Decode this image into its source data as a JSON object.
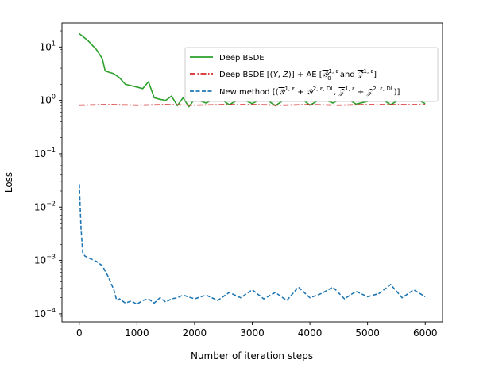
{
  "chart_data": {
    "type": "line",
    "xlabel": "Number of iteration steps",
    "ylabel": "Loss",
    "xlim": [
      -300,
      6300
    ],
    "ylim_log10": [
      -4.15,
      1.45
    ],
    "yscale": "log",
    "grid": false,
    "legend_position": "top-right",
    "x_ticks": [
      0,
      1000,
      2000,
      3000,
      4000,
      5000,
      6000
    ],
    "x_tick_labels": [
      "0",
      "1000",
      "2000",
      "3000",
      "4000",
      "5000",
      "6000"
    ],
    "y_ticks_log10": [
      1,
      0,
      -1,
      -2,
      -3,
      -4
    ],
    "y_tick_labels": [
      {
        "base": "10",
        "exp": "1"
      },
      {
        "base": "10",
        "exp": "0"
      },
      {
        "base": "10",
        "exp": "−1"
      },
      {
        "base": "10",
        "exp": "−2"
      },
      {
        "base": "10",
        "exp": "−3"
      },
      {
        "base": "10",
        "exp": "−4"
      }
    ],
    "series": [
      {
        "name": "Deep BSDE",
        "legend_label": "Deep BSDE",
        "color": "#2ca02c",
        "style": "solid",
        "x": [
          0,
          150,
          300,
          400,
          450,
          600,
          700,
          800,
          1000,
          1100,
          1200,
          1300,
          1400,
          1500,
          1600,
          1700,
          1800,
          1900,
          2000,
          2200,
          2400,
          2600,
          2800,
          3000,
          3200,
          3400,
          3600,
          3800,
          4000,
          4200,
          4400,
          4600,
          4800,
          5000,
          5200,
          5400,
          5600,
          5800,
          6000
        ],
        "y_log10": [
          1.25,
          1.12,
          0.95,
          0.78,
          0.55,
          0.5,
          0.42,
          0.3,
          0.25,
          0.22,
          0.35,
          0.05,
          0.02,
          0.0,
          0.08,
          -0.1,
          0.05,
          -0.12,
          0.02,
          -0.05,
          0.06,
          -0.08,
          0.03,
          -0.06,
          0.05,
          -0.1,
          0.04,
          0.07,
          -0.09,
          0.03,
          -0.05,
          0.06,
          -0.07,
          -0.02,
          0.05,
          -0.08,
          0.04,
          0.05,
          -0.06
        ]
      },
      {
        "name": "Deep BSDE + AE",
        "legend_label": "Deep BSDE [(Y, Z)] + AE [Y₀^{1,ε} and Z^{1,ε}]",
        "color": "#d62728",
        "style": "dashdot",
        "x": [
          0,
          500,
          1000,
          1500,
          2000,
          2500,
          3000,
          3500,
          4000,
          4500,
          5000,
          5500,
          6000
        ],
        "y_log10": [
          -0.09,
          -0.08,
          -0.09,
          -0.08,
          -0.09,
          -0.08,
          -0.08,
          -0.09,
          -0.08,
          -0.09,
          -0.08,
          -0.08,
          -0.08
        ]
      },
      {
        "name": "New method",
        "legend_label": "New method [(Y^{1,ε} + Y^{2,ε,DL}, Z^{1,ε} + Z^{2,ε,DL})]",
        "color": "#1f77b4",
        "style": "dashed",
        "x": [
          0,
          30,
          60,
          100,
          200,
          300,
          400,
          500,
          600,
          650,
          700,
          800,
          900,
          1000,
          1100,
          1200,
          1300,
          1400,
          1500,
          1600,
          1700,
          1800,
          2000,
          2200,
          2400,
          2600,
          2800,
          3000,
          3200,
          3400,
          3600,
          3800,
          4000,
          4200,
          4400,
          4600,
          4800,
          5000,
          5200,
          5400,
          5600,
          5800,
          6000
        ],
        "y_log10": [
          -1.57,
          -2.4,
          -2.85,
          -2.92,
          -2.97,
          -3.02,
          -3.1,
          -3.3,
          -3.55,
          -3.75,
          -3.72,
          -3.8,
          -3.76,
          -3.82,
          -3.75,
          -3.72,
          -3.8,
          -3.7,
          -3.78,
          -3.72,
          -3.7,
          -3.65,
          -3.72,
          -3.65,
          -3.75,
          -3.6,
          -3.7,
          -3.55,
          -3.72,
          -3.6,
          -3.75,
          -3.5,
          -3.7,
          -3.62,
          -3.5,
          -3.72,
          -3.58,
          -3.68,
          -3.62,
          -3.45,
          -3.7,
          -3.55,
          -3.68
        ]
      }
    ]
  }
}
